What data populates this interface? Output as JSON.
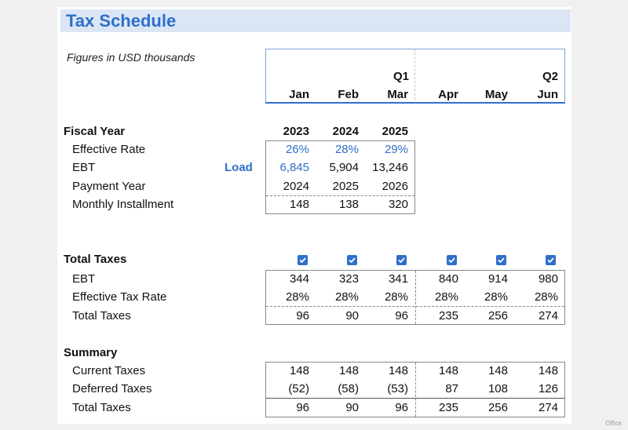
{
  "title": "Tax Schedule",
  "note": "Figures in USD thousands",
  "quarters": [
    "Q1",
    "Q2"
  ],
  "months": [
    "Jan",
    "Feb",
    "Mar",
    "Apr",
    "May",
    "Jun"
  ],
  "fiscal": {
    "label": "Fiscal Year",
    "years": [
      "2023",
      "2024",
      "2025"
    ],
    "load_label": "Load",
    "rows": [
      {
        "label": "Effective Rate",
        "values": [
          "26%",
          "28%",
          "29%"
        ]
      },
      {
        "label": "EBT",
        "values": [
          "6,845",
          "5,904",
          "13,246"
        ]
      },
      {
        "label": "Payment Year",
        "values": [
          "2024",
          "2025",
          "2026"
        ]
      },
      {
        "label": "Monthly Installment",
        "values": [
          "148",
          "138",
          "320"
        ]
      }
    ]
  },
  "total_taxes": {
    "label": "Total Taxes",
    "checkboxes": [
      true,
      true,
      true,
      true,
      true,
      true
    ],
    "rows": [
      {
        "label": "EBT",
        "values": [
          "344",
          "323",
          "341",
          "840",
          "914",
          "980"
        ]
      },
      {
        "label": "Effective Tax Rate",
        "values": [
          "28%",
          "28%",
          "28%",
          "28%",
          "28%",
          "28%"
        ]
      },
      {
        "label": "Total Taxes",
        "values": [
          "96",
          "90",
          "96",
          "235",
          "256",
          "274"
        ]
      }
    ]
  },
  "summary": {
    "label": "Summary",
    "rows": [
      {
        "label": "Current Taxes",
        "values": [
          "148",
          "148",
          "148",
          "148",
          "148",
          "148"
        ]
      },
      {
        "label": "Deferred Taxes",
        "values": [
          "(52)",
          "(58)",
          "(53)",
          "87",
          "108",
          "126"
        ]
      },
      {
        "label": "Total Taxes",
        "values": [
          "96",
          "90",
          "96",
          "235",
          "256",
          "274"
        ]
      }
    ]
  },
  "colors": {
    "accent": "#2f6fcb",
    "title_bg": "#dbe5f4"
  },
  "watermark": "Office"
}
